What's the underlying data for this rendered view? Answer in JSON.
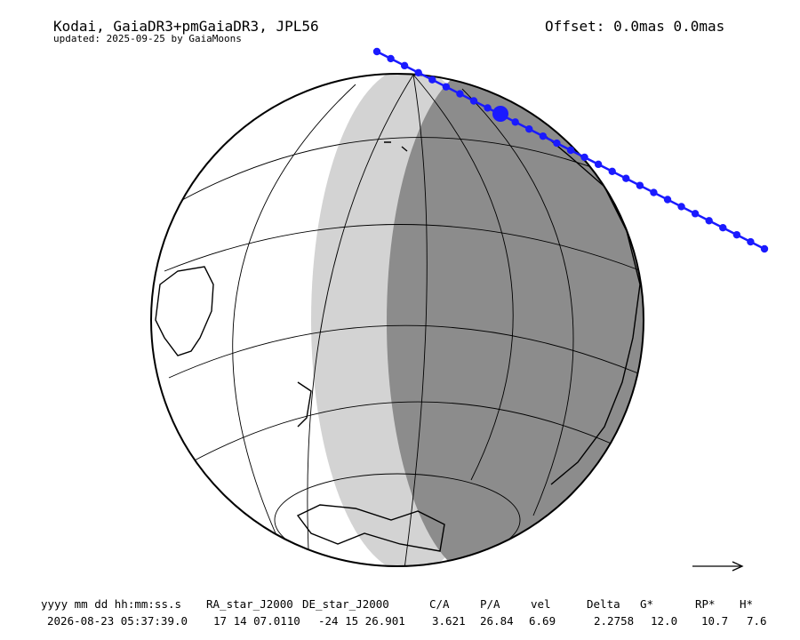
{
  "header": {
    "title": "Kodai, GaiaDR3+pmGaiaDR3, JPL56",
    "updated": "updated: 2025-09-25 by GaiaMoons",
    "offset": "Offset: 0.0mas 0.0mas"
  },
  "table": {
    "columns": [
      "yyyy mm dd hh:mm:ss.s",
      "RA_star_J2000",
      "DE_star_J2000",
      "C/A",
      "P/A",
      "vel",
      "Delta",
      "G*",
      "RP*",
      "H*"
    ],
    "rows": [
      [
        "2026-08-23 05:37:39.0",
        "17 14 07.0110",
        "-24 15 26.901",
        "3.621",
        "26.84",
        "6.69",
        "2.2758",
        "12.0",
        "10.7",
        "7.6"
      ]
    ]
  }
}
